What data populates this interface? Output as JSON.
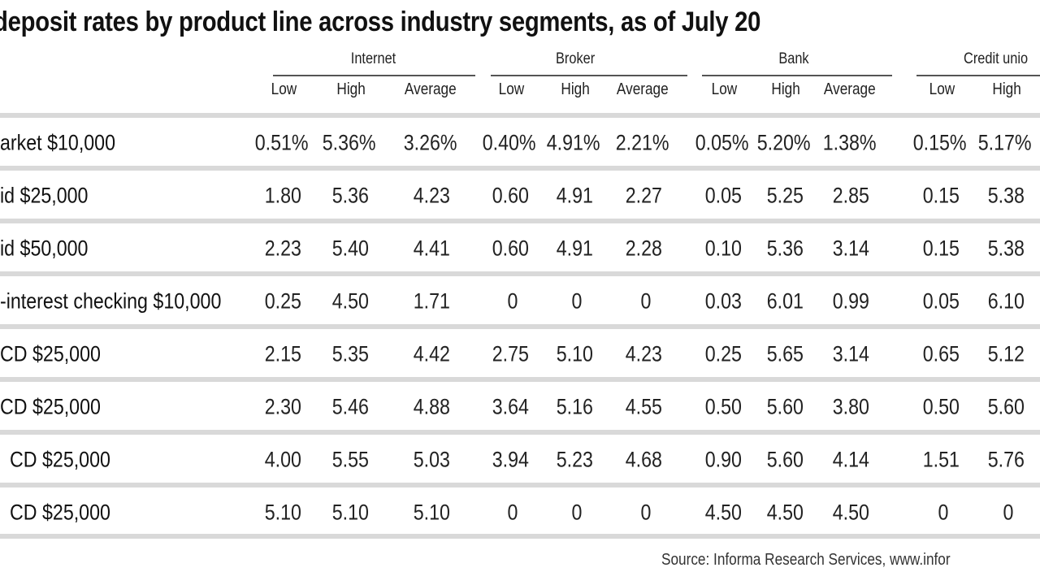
{
  "chart_data": {
    "type": "table",
    "title": "deposit rates by product line across industry segments, as of July 20",
    "groups": [
      "Internet",
      "Broker",
      "Bank",
      "Credit unio"
    ],
    "columns": [
      {
        "group": "Internet",
        "label": "Low"
      },
      {
        "group": "Internet",
        "label": "High"
      },
      {
        "group": "Internet",
        "label": "Average"
      },
      {
        "group": "Broker",
        "label": "Low"
      },
      {
        "group": "Broker",
        "label": "High"
      },
      {
        "group": "Broker",
        "label": "Average"
      },
      {
        "group": "Bank",
        "label": "Low"
      },
      {
        "group": "Bank",
        "label": "High"
      },
      {
        "group": "Bank",
        "label": "Average"
      },
      {
        "group": "Credit unio",
        "label": "Low"
      },
      {
        "group": "Credit unio",
        "label": "High"
      }
    ],
    "rows": [
      {
        "label": "arket $10,000",
        "values": [
          "0.51%",
          "5.36%",
          "3.26%",
          "0.40%",
          "4.91%",
          "2.21%",
          "0.05%",
          "5.20%",
          "1.38%",
          "0.15%",
          "5.17%"
        ]
      },
      {
        "label": "id $25,000",
        "values": [
          "1.80",
          "5.36",
          "4.23",
          "0.60",
          "4.91",
          "2.27",
          "0.05",
          "5.25",
          "2.85",
          "0.15",
          "5.38"
        ]
      },
      {
        "label": "id $50,000",
        "values": [
          "2.23",
          "5.40",
          "4.41",
          "0.60",
          "4.91",
          "2.28",
          "0.10",
          "5.36",
          "3.14",
          "0.15",
          "5.38"
        ]
      },
      {
        "label": "-interest checking $10,000",
        "values": [
          "0.25",
          "4.50",
          "1.71",
          "0",
          "0",
          "0",
          "0.03",
          "6.01",
          "0.99",
          "0.05",
          "6.10"
        ]
      },
      {
        "label": "CD $25,000",
        "values": [
          "2.15",
          "5.35",
          "4.42",
          "2.75",
          "5.10",
          "4.23",
          "0.25",
          "5.65",
          "3.14",
          "0.65",
          "5.12"
        ]
      },
      {
        "label": "CD $25,000",
        "values": [
          "2.30",
          "5.46",
          "4.88",
          "3.64",
          "5.16",
          "4.55",
          "0.50",
          "5.60",
          "3.80",
          "0.50",
          "5.60"
        ]
      },
      {
        "label": "CD $25,000",
        "values": [
          "4.00",
          "5.55",
          "5.03",
          "3.94",
          "5.23",
          "4.68",
          "0.90",
          "5.60",
          "4.14",
          "1.51",
          "5.76"
        ]
      },
      {
        "label": "CD $25,000",
        "values": [
          "5.10",
          "5.10",
          "5.10",
          "0",
          "0",
          "0",
          "4.50",
          "4.50",
          "4.50",
          "0",
          "0"
        ]
      }
    ],
    "source": "Source: Informa Research Services, www.infor"
  }
}
